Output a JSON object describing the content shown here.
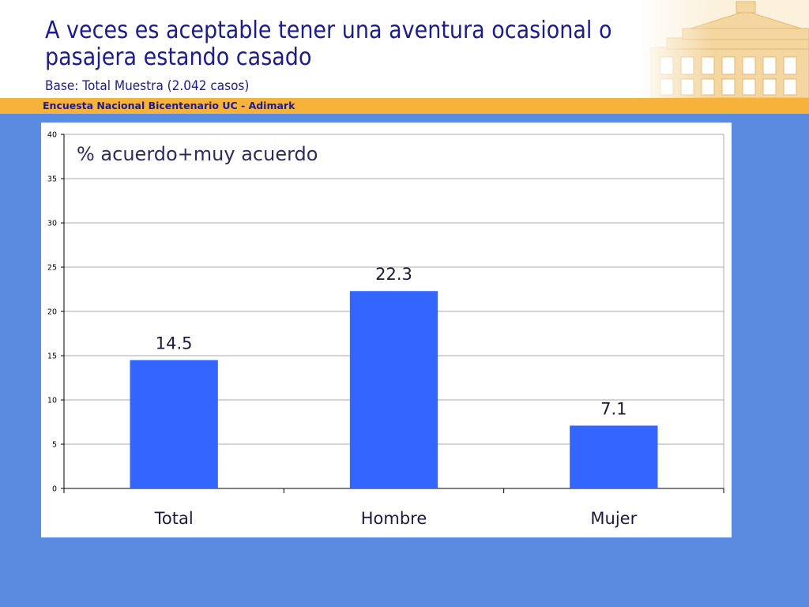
{
  "header": {
    "title": "A veces es aceptable tener una aventura ocasional o pasajera estando casado",
    "subtitle": "Base: Total Muestra (2.042 casos)",
    "band_label": "Encuesta Nacional Bicentenario UC - Adimark"
  },
  "colors": {
    "background": "#5b8be0",
    "title_text": "#1c1c8c",
    "band": "#f7b23b",
    "bar": "#3366ff",
    "grid": "#a9a9a9"
  },
  "icons": [
    "building-illustration-icon"
  ],
  "chart_data": {
    "type": "bar",
    "title": "% acuerdo+muy acuerdo",
    "categories": [
      "Total",
      "Hombre",
      "Mujer"
    ],
    "values": [
      14.5,
      22.3,
      7.1
    ],
    "value_labels": [
      "14.5",
      "22.3",
      "7.1"
    ],
    "ylim": [
      0,
      40
    ],
    "yticks": [
      0,
      5,
      10,
      15,
      20,
      25,
      30,
      35,
      40
    ],
    "xlabel": "",
    "ylabel": "",
    "grid": true,
    "legend": "none"
  }
}
